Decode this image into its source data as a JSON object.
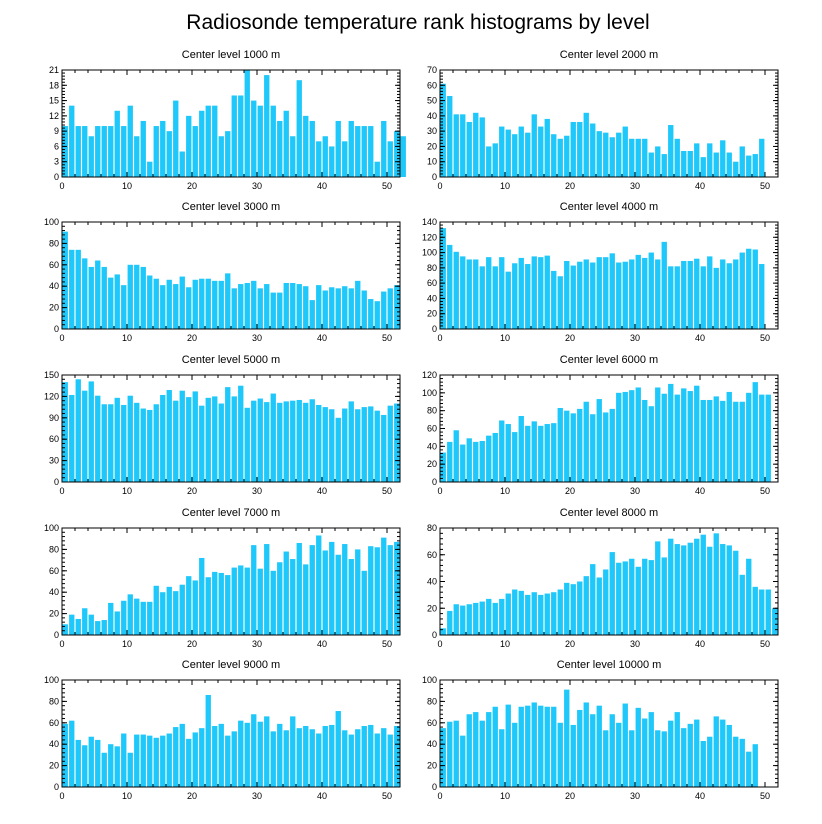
{
  "figure": {
    "title": "Radiosonde temperature rank histograms by level",
    "bar_color": "#1ec8fa",
    "frame_color": "#000000"
  },
  "chart_data": [
    {
      "type": "bar",
      "title": "Center level 1000 m",
      "xlabel": "",
      "ylabel": "",
      "xlim": [
        0,
        52
      ],
      "x_ticks": [
        0,
        10,
        20,
        30,
        40,
        50
      ],
      "ylim": [
        0,
        21
      ],
      "y_ticks": [
        0,
        3,
        6,
        9,
        12,
        15,
        18,
        21
      ],
      "values": [
        10,
        14,
        10,
        10,
        8,
        10,
        10,
        10,
        13,
        10,
        14,
        8,
        11,
        3,
        10,
        11,
        9,
        15,
        5,
        12,
        10,
        13,
        14,
        14,
        8,
        9,
        16,
        16,
        21,
        15,
        14,
        20,
        14,
        11,
        13,
        8,
        19,
        12,
        11,
        7,
        8,
        6,
        11,
        7,
        11,
        10,
        10,
        10,
        3,
        11,
        7,
        9,
        8
      ]
    },
    {
      "type": "bar",
      "title": "Center level 2000 m",
      "xlabel": "",
      "ylabel": "",
      "xlim": [
        0,
        52
      ],
      "x_ticks": [
        0,
        10,
        20,
        30,
        40,
        50
      ],
      "ylim": [
        0,
        70
      ],
      "y_ticks": [
        0,
        10,
        20,
        30,
        40,
        50,
        60,
        70
      ],
      "values": [
        61,
        53,
        41,
        41,
        36,
        42,
        39,
        20,
        22,
        33,
        31,
        28,
        33,
        29,
        41,
        33,
        38,
        28,
        25,
        27,
        36,
        36,
        42,
        35,
        30,
        29,
        26,
        29,
        33,
        25,
        25,
        25,
        16,
        20,
        15,
        34,
        25,
        17,
        17,
        22,
        13,
        22,
        16,
        24,
        16,
        10,
        20,
        14,
        15,
        25
      ]
    },
    {
      "type": "bar",
      "title": "Center level 3000 m",
      "xlabel": "",
      "ylabel": "",
      "xlim": [
        0,
        52
      ],
      "x_ticks": [
        0,
        10,
        20,
        30,
        40,
        50
      ],
      "ylim": [
        0,
        100
      ],
      "y_ticks": [
        0,
        20,
        40,
        60,
        80,
        100
      ],
      "values": [
        91,
        74,
        74,
        66,
        58,
        64,
        58,
        48,
        51,
        41,
        60,
        60,
        58,
        50,
        47,
        41,
        46,
        42,
        49,
        39,
        46,
        47,
        47,
        45,
        45,
        52,
        38,
        42,
        43,
        45,
        38,
        42,
        34,
        34,
        43,
        43,
        42,
        40,
        27,
        41,
        36,
        39,
        38,
        40,
        38,
        45,
        36,
        28,
        26,
        35,
        38,
        41
      ]
    },
    {
      "type": "bar",
      "title": "Center level 4000 m",
      "xlabel": "",
      "ylabel": "",
      "xlim": [
        0,
        52
      ],
      "x_ticks": [
        0,
        10,
        20,
        30,
        40,
        50
      ],
      "ylim": [
        0,
        140
      ],
      "y_ticks": [
        0,
        20,
        40,
        60,
        80,
        100,
        120,
        140
      ],
      "values": [
        132,
        110,
        101,
        95,
        91,
        91,
        82,
        94,
        82,
        94,
        75,
        86,
        93,
        85,
        95,
        94,
        96,
        76,
        69,
        89,
        83,
        88,
        91,
        87,
        94,
        94,
        99,
        87,
        88,
        91,
        97,
        93,
        100,
        91,
        114,
        82,
        82,
        89,
        89,
        92,
        82,
        95,
        80,
        91,
        86,
        91,
        100,
        105,
        104,
        85
      ]
    },
    {
      "type": "bar",
      "title": "Center level 5000 m",
      "xlabel": "",
      "ylabel": "",
      "xlim": [
        0,
        52
      ],
      "x_ticks": [
        0,
        10,
        20,
        30,
        40,
        50
      ],
      "ylim": [
        0,
        150
      ],
      "y_ticks": [
        0,
        30,
        60,
        90,
        120,
        150
      ],
      "values": [
        140,
        122,
        144,
        128,
        141,
        121,
        109,
        109,
        118,
        108,
        121,
        111,
        103,
        101,
        109,
        122,
        129,
        114,
        128,
        119,
        127,
        107,
        118,
        120,
        110,
        133,
        120,
        135,
        104,
        114,
        117,
        112,
        124,
        111,
        113,
        114,
        115,
        111,
        116,
        108,
        105,
        102,
        90,
        103,
        113,
        102,
        105,
        106,
        100,
        94,
        107,
        110
      ]
    },
    {
      "type": "bar",
      "title": "Center level 6000 m",
      "xlabel": "",
      "ylabel": "",
      "xlim": [
        0,
        52
      ],
      "x_ticks": [
        0,
        10,
        20,
        30,
        40,
        50
      ],
      "ylim": [
        0,
        120
      ],
      "y_ticks": [
        0,
        20,
        40,
        60,
        80,
        100,
        120
      ],
      "values": [
        33,
        45,
        58,
        42,
        49,
        45,
        46,
        52,
        55,
        69,
        65,
        56,
        74,
        63,
        68,
        63,
        65,
        66,
        83,
        80,
        77,
        82,
        90,
        76,
        93,
        78,
        82,
        100,
        101,
        103,
        106,
        92,
        85,
        106,
        99,
        110,
        98,
        105,
        102,
        108,
        92,
        92,
        96,
        91,
        101,
        90,
        90,
        100,
        112,
        98,
        98
      ]
    },
    {
      "type": "bar",
      "title": "Center level 7000 m",
      "xlabel": "",
      "ylabel": "",
      "xlim": [
        0,
        52
      ],
      "x_ticks": [
        0,
        10,
        20,
        30,
        40,
        50
      ],
      "ylim": [
        0,
        100
      ],
      "y_ticks": [
        0,
        20,
        40,
        60,
        80,
        100
      ],
      "values": [
        10,
        19,
        15,
        25,
        19,
        13,
        14,
        30,
        22,
        32,
        38,
        34,
        31,
        31,
        46,
        40,
        45,
        41,
        47,
        55,
        51,
        72,
        54,
        59,
        58,
        56,
        63,
        65,
        63,
        84,
        62,
        85,
        60,
        68,
        78,
        71,
        86,
        66,
        84,
        93,
        79,
        87,
        75,
        85,
        71,
        80,
        60,
        83,
        82,
        91,
        84,
        87
      ]
    },
    {
      "type": "bar",
      "title": "Center level 8000 m",
      "xlabel": "",
      "ylabel": "",
      "xlim": [
        0,
        52
      ],
      "x_ticks": [
        0,
        10,
        20,
        30,
        40,
        50
      ],
      "ylim": [
        0,
        80
      ],
      "y_ticks": [
        0,
        20,
        40,
        60,
        80
      ],
      "values": [
        5,
        18,
        23,
        22,
        23,
        24,
        25,
        27,
        24,
        27,
        31,
        34,
        33,
        30,
        32,
        30,
        31,
        32,
        34,
        39,
        38,
        40,
        44,
        53,
        43,
        49,
        62,
        54,
        55,
        57,
        51,
        57,
        56,
        70,
        58,
        72,
        68,
        67,
        69,
        72,
        75,
        66,
        76,
        68,
        67,
        63,
        45,
        57,
        36,
        34,
        34,
        20
      ]
    },
    {
      "type": "bar",
      "title": "Center level 9000 m",
      "xlabel": "",
      "ylabel": "",
      "xlim": [
        0,
        52
      ],
      "x_ticks": [
        0,
        10,
        20,
        30,
        40,
        50
      ],
      "ylim": [
        0,
        100
      ],
      "y_ticks": [
        0,
        20,
        40,
        60,
        80,
        100
      ],
      "values": [
        59,
        62,
        44,
        39,
        47,
        44,
        32,
        40,
        38,
        50,
        32,
        49,
        49,
        48,
        46,
        48,
        50,
        56,
        59,
        45,
        51,
        55,
        86,
        57,
        59,
        48,
        52,
        62,
        60,
        68,
        61,
        66,
        52,
        59,
        53,
        66,
        55,
        57,
        54,
        50,
        57,
        58,
        71,
        53,
        49,
        54,
        57,
        58,
        50,
        55,
        49,
        57
      ]
    },
    {
      "type": "bar",
      "title": "Center level 10000 m",
      "xlabel": "",
      "ylabel": "",
      "xlim": [
        0,
        52
      ],
      "x_ticks": [
        0,
        10,
        20,
        30,
        40,
        50
      ],
      "ylim": [
        0,
        100
      ],
      "y_ticks": [
        0,
        20,
        40,
        60,
        80,
        100
      ],
      "values": [
        55,
        61,
        62,
        48,
        68,
        70,
        62,
        70,
        75,
        54,
        77,
        60,
        75,
        76,
        79,
        76,
        75,
        75,
        60,
        91,
        58,
        72,
        79,
        68,
        76,
        53,
        68,
        60,
        78,
        53,
        74,
        64,
        70,
        53,
        52,
        62,
        70,
        55,
        59,
        63,
        43,
        47,
        66,
        63,
        58,
        47,
        45,
        33,
        40
      ]
    }
  ]
}
